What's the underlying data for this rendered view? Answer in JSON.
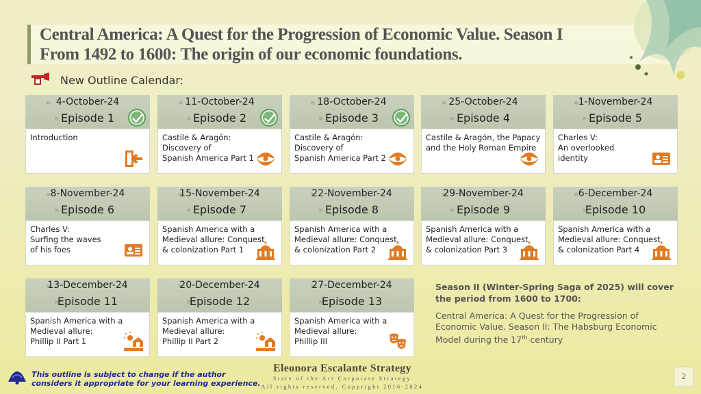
{
  "header": {
    "title_line1": "Central America:  A Quest for the Progression of Economic Value. Season I",
    "title_line2": "From 1492 to 1600: The origin of our economic foundations."
  },
  "outline_label": "New Outline Calendar:",
  "episodes": [
    {
      "date": "4-October-24",
      "episode": "Episode 1",
      "completed": true,
      "text": "Introduction",
      "icon": "exit-door-icon"
    },
    {
      "date": "11-October-24",
      "episode": "Episode 2",
      "completed": true,
      "text": "Castile & Aragón:\nDiscovery of\nSpanish America Part 1",
      "icon": "pearl-oyster-icon"
    },
    {
      "date": "18-October-24",
      "episode": "Episode 3",
      "completed": true,
      "text": "Castile & Aragón:\nDiscovery of\nSpanish America Part 2",
      "icon": "pearl-oyster-icon"
    },
    {
      "date": "25-October-24",
      "episode": "Episode 4",
      "completed": false,
      "text": "Castile & Aragón, the Papacy\nand the Holy Roman Empire",
      "icon": "pearl-oyster-icon"
    },
    {
      "date": "1-November-24",
      "episode": "Episode 5",
      "completed": false,
      "text": "Charles V:\nAn overlooked\nidentity",
      "icon": "id-card-icon"
    },
    {
      "date": "8-November-24",
      "episode": "Episode 6",
      "completed": false,
      "text": "Charles V:\nSurfing the waves\nof his foes",
      "icon": "id-card-icon"
    },
    {
      "date": "15-November-24",
      "episode": "Episode 7",
      "completed": false,
      "text": "Spanish America with a\nMedieval allure: Conquest\n & colonization Part 1",
      "icon": "cathedral-icon"
    },
    {
      "date": "22-November-24",
      "episode": "Episode 8",
      "completed": false,
      "text": "Spanish America with a\nMedieval allure: Conquest\n & colonization Part 2",
      "icon": "cathedral-icon"
    },
    {
      "date": "29-November-24",
      "episode": "Episode 9",
      "completed": false,
      "text": "Spanish America with a\nMedieval allure: Conquest\n & colonization Part 3",
      "icon": "cathedral-icon"
    },
    {
      "date": "6-December-24",
      "episode": "Episode 10",
      "completed": false,
      "text": "Spanish America with a\nMedieval allure: Conquest\n & colonization Part 4",
      "icon": "cathedral-icon"
    },
    {
      "date": "13-December-24",
      "episode": "Episode 11",
      "completed": false,
      "text": "Spanish America with a\nMedieval allure:\nPhillip II Part 1",
      "icon": "farm-sunrise-icon"
    },
    {
      "date": "20-December-24",
      "episode": "Episode 12",
      "completed": false,
      "text": "Spanish America with a\nMedieval allure:\nPhillip II Part 2",
      "icon": "farm-sunrise-icon"
    },
    {
      "date": "27-December-24",
      "episode": "Episode 13",
      "completed": false,
      "text": "Spanish America with a\nMedieval allure:\nPhillip III",
      "icon": "theater-masks-icon"
    }
  ],
  "season2": {
    "title": "Season II (Winter-Spring Saga of 2025) will cover the period from 1600 to 1700:",
    "body": "Central America: A Quest for the Progression of Economic Value. Season II: The Habsburg Economic Model during the 17th century"
  },
  "brand": {
    "name": "Eleonora Escalante Strategy",
    "tagline": "State of the Art Corporate Strategy",
    "rights": "All rights reserved. Copyright 2016-2024"
  },
  "disclaimer": "This outline is subject to change if the author considers it appropriate for your learning experience.",
  "page_number": "2",
  "colors": {
    "header_fill": "#bcc6ae",
    "check": "#7bb77a",
    "icon_orange": "#e07b24",
    "disclaimer": "#1e2a8c"
  }
}
